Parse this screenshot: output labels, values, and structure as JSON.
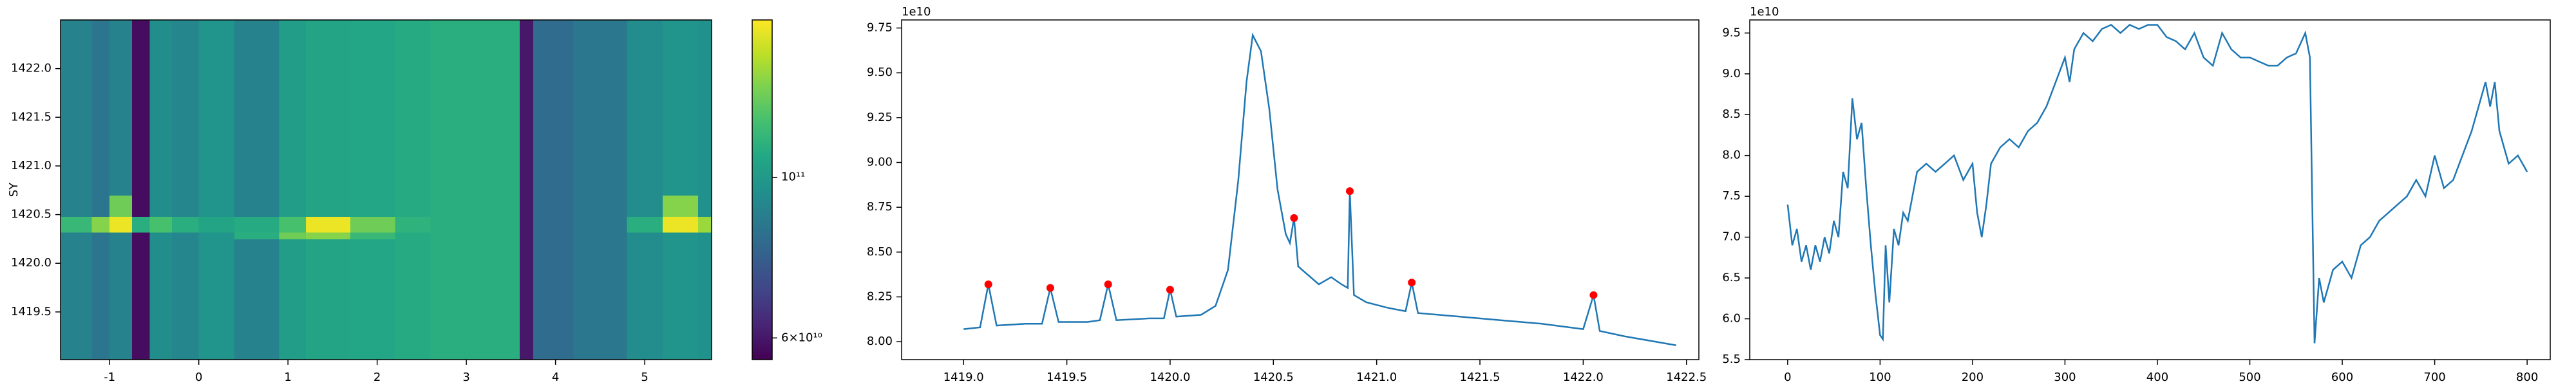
{
  "chart_data": [
    {
      "type": "heatmap",
      "ylabel": "SY",
      "colormap": "viridis",
      "log_color": true,
      "xlim": [
        -1.55,
        5.75
      ],
      "xticks": [
        -1,
        0,
        1,
        2,
        3,
        4,
        5
      ],
      "ylim": [
        1419.01,
        1422.5
      ],
      "yticks": [
        1419.5,
        {
          "value": 1420.0,
          "label": "1420.0"
        },
        1420.5,
        {
          "value": 1421.0,
          "label": "1421.0"
        },
        1421.5,
        {
          "value": 1422.0,
          "label": "1422.0"
        }
      ],
      "x_edges": [
        -1.55,
        -1.2,
        -1.0,
        -0.75,
        -0.55,
        -0.3,
        0,
        0.4,
        0.9,
        1.2,
        1.7,
        2.2,
        2.6,
        3.0,
        3.6,
        3.75,
        4.2,
        4.8,
        5.2,
        5.6,
        5.75
      ],
      "y_edges": [
        1419.01,
        1420.25,
        1420.32,
        1420.48,
        1420.7,
        1422.5
      ],
      "values": [
        [
          90000000000.0,
          85000000000.0,
          90000000000.0,
          58000000000.0,
          95000000000.0,
          92000000000.0,
          98000000000.0,
          90000000000.0,
          102000000000.0,
          105000000000.0,
          106000000000.0,
          108000000000.0,
          110000000000.0,
          110000000000.0,
          60000000000.0,
          82000000000.0,
          86000000000.0,
          94000000000.0,
          98000000000.0,
          96000000000.0
        ],
        [
          90000000000.0,
          85000000000.0,
          90000000000.0,
          58000000000.0,
          95000000000.0,
          92000000000.0,
          98000000000.0,
          110000000000.0,
          130000000000.0,
          135000000000.0,
          115000000000.0,
          108000000000.0,
          110000000000.0,
          110000000000.0,
          60000000000.0,
          82000000000.0,
          86000000000.0,
          94000000000.0,
          98000000000.0,
          96000000000.0
        ],
        [
          115000000000.0,
          135000000000.0,
          160000000000.0,
          110000000000.0,
          120000000000.0,
          110000000000.0,
          105000000000.0,
          108000000000.0,
          120000000000.0,
          160000000000.0,
          130000000000.0,
          112000000000.0,
          110000000000.0,
          110000000000.0,
          60000000000.0,
          82000000000.0,
          86000000000.0,
          110000000000.0,
          160000000000.0,
          140000000000.0
        ],
        [
          90000000000.0,
          85000000000.0,
          130000000000.0,
          58000000000.0,
          95000000000.0,
          92000000000.0,
          98000000000.0,
          90000000000.0,
          102000000000.0,
          105000000000.0,
          106000000000.0,
          108000000000.0,
          110000000000.0,
          110000000000.0,
          60000000000.0,
          82000000000.0,
          86000000000.0,
          94000000000.0,
          135000000000.0,
          96000000000.0
        ],
        [
          90000000000.0,
          85000000000.0,
          90000000000.0,
          58000000000.0,
          95000000000.0,
          92000000000.0,
          98000000000.0,
          90000000000.0,
          102000000000.0,
          105000000000.0,
          106000000000.0,
          108000000000.0,
          110000000000.0,
          110000000000.0,
          60000000000.0,
          82000000000.0,
          86000000000.0,
          94000000000.0,
          98000000000.0,
          96000000000.0
        ]
      ],
      "clim": [
        56000000000.0,
        165000000000.0
      ],
      "cticks": [
        {
          "value": 60000000000.0,
          "label": "6×10¹⁰"
        },
        {
          "value": 100000000000.0,
          "label": "10¹¹"
        }
      ]
    },
    {
      "type": "line",
      "y_offset_label": "1e10",
      "color": "#1f77b4",
      "xlim": [
        1418.7,
        1422.56
      ],
      "xticks": [
        {
          "value": 1419.0,
          "label": "1419.0"
        },
        1419.5,
        {
          "value": 1420.0,
          "label": "1420.0"
        },
        1420.5,
        {
          "value": 1421.0,
          "label": "1421.0"
        },
        1421.5,
        {
          "value": 1422.0,
          "label": "1422.0"
        },
        1422.5
      ],
      "ylim": [
        7.9,
        9.795
      ],
      "yticks": [
        {
          "value": 8.0,
          "label": "8.00"
        },
        8.25,
        {
          "value": 8.5,
          "label": "8.50"
        },
        8.75,
        {
          "value": 9.0,
          "label": "9.00"
        },
        9.25,
        {
          "value": 9.5,
          "label": "9.50"
        },
        9.75
      ],
      "x": [
        1419.0,
        1419.08,
        1419.12,
        1419.16,
        1419.3,
        1419.38,
        1419.42,
        1419.46,
        1419.6,
        1419.66,
        1419.7,
        1419.74,
        1419.9,
        1419.97,
        1420.0,
        1420.03,
        1420.15,
        1420.22,
        1420.28,
        1420.33,
        1420.37,
        1420.4,
        1420.44,
        1420.48,
        1420.52,
        1420.56,
        1420.58,
        1420.6,
        1420.62,
        1420.66,
        1420.72,
        1420.78,
        1420.83,
        1420.86,
        1420.87,
        1420.89,
        1420.95,
        1421.05,
        1421.14,
        1421.17,
        1421.2,
        1421.4,
        1421.6,
        1421.8,
        1422.0,
        1422.05,
        1422.08,
        1422.2,
        1422.35,
        1422.45
      ],
      "values": [
        8.07,
        8.08,
        8.32,
        8.09,
        8.1,
        8.1,
        8.3,
        8.11,
        8.11,
        8.12,
        8.32,
        8.12,
        8.13,
        8.13,
        8.29,
        8.14,
        8.15,
        8.2,
        8.4,
        8.9,
        9.45,
        9.71,
        9.62,
        9.3,
        8.85,
        8.6,
        8.55,
        8.69,
        8.42,
        8.38,
        8.32,
        8.36,
        8.32,
        8.3,
        8.84,
        8.26,
        8.22,
        8.19,
        8.17,
        8.33,
        8.16,
        8.14,
        8.12,
        8.1,
        8.07,
        8.26,
        8.06,
        8.03,
        8.0,
        7.98
      ],
      "peaks": {
        "color": "#ff0000",
        "x": [
          1419.12,
          1419.42,
          1419.7,
          1420.0,
          1420.6,
          1420.87,
          1421.17,
          1422.05
        ],
        "values": [
          8.32,
          8.3,
          8.32,
          8.29,
          8.69,
          8.84,
          8.33,
          8.26
        ]
      }
    },
    {
      "type": "line",
      "y_offset_label": "1e10",
      "color": "#1f77b4",
      "xlim": [
        -41,
        825
      ],
      "xticks": [
        0,
        100,
        200,
        300,
        400,
        500,
        600,
        700,
        800
      ],
      "ylim": [
        5.5,
        9.66
      ],
      "yticks": [
        5.5,
        {
          "value": 6.0,
          "label": "6.0"
        },
        6.5,
        {
          "value": 7.0,
          "label": "7.0"
        },
        7.5,
        {
          "value": 8.0,
          "label": "8.0"
        },
        8.5,
        {
          "value": 9.0,
          "label": "9.0"
        },
        9.5
      ],
      "x": [
        0,
        5,
        10,
        15,
        20,
        25,
        30,
        35,
        40,
        45,
        50,
        55,
        60,
        65,
        70,
        75,
        80,
        85,
        90,
        95,
        100,
        103,
        106,
        110,
        115,
        120,
        125,
        130,
        140,
        150,
        160,
        170,
        180,
        190,
        200,
        205,
        210,
        215,
        220,
        230,
        240,
        250,
        260,
        270,
        280,
        290,
        300,
        305,
        310,
        320,
        330,
        340,
        350,
        360,
        370,
        380,
        390,
        400,
        410,
        420,
        430,
        440,
        450,
        460,
        470,
        480,
        490,
        500,
        510,
        520,
        530,
        540,
        550,
        560,
        565,
        570,
        575,
        580,
        590,
        600,
        610,
        620,
        630,
        640,
        650,
        660,
        670,
        680,
        690,
        700,
        710,
        720,
        730,
        740,
        750,
        755,
        760,
        765,
        770,
        780,
        790,
        800
      ],
      "values": [
        7.4,
        6.9,
        7.1,
        6.7,
        6.9,
        6.6,
        6.9,
        6.7,
        7.0,
        6.8,
        7.2,
        7.0,
        7.8,
        7.6,
        8.7,
        8.2,
        8.4,
        7.6,
        6.9,
        6.3,
        5.8,
        5.75,
        6.9,
        6.2,
        7.1,
        6.9,
        7.3,
        7.2,
        7.8,
        7.9,
        7.8,
        7.9,
        8.0,
        7.7,
        7.9,
        7.3,
        7.0,
        7.4,
        7.9,
        8.1,
        8.2,
        8.1,
        8.3,
        8.4,
        8.6,
        8.9,
        9.2,
        8.9,
        9.3,
        9.5,
        9.4,
        9.55,
        9.6,
        9.5,
        9.6,
        9.55,
        9.6,
        9.6,
        9.45,
        9.4,
        9.3,
        9.5,
        9.2,
        9.1,
        9.5,
        9.3,
        9.2,
        9.2,
        9.15,
        9.1,
        9.1,
        9.2,
        9.25,
        9.5,
        9.2,
        5.7,
        6.5,
        6.2,
        6.6,
        6.7,
        6.5,
        6.9,
        7.0,
        7.2,
        7.3,
        7.4,
        7.5,
        7.7,
        7.5,
        8.0,
        7.6,
        7.7,
        8.0,
        8.3,
        8.7,
        8.9,
        8.6,
        8.9,
        8.3,
        7.9,
        8.0,
        7.8
      ]
    }
  ]
}
